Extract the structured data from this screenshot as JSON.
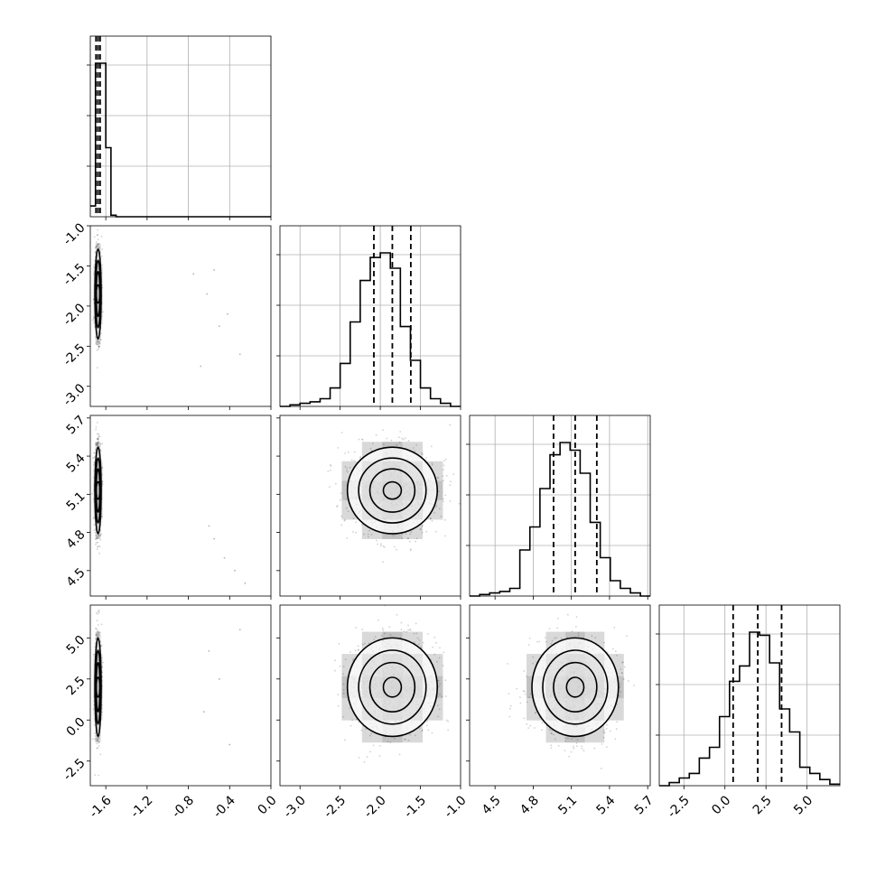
{
  "chart_data": {
    "type": "corner",
    "description_of_params": "4 parameters, no axis labels printed",
    "grid": true,
    "hist_type": "step",
    "quantile_lines": "dashed",
    "params": [
      {
        "min": -1.75,
        "max": 0.0,
        "ticks": [
          "-1.6",
          "-1.2",
          "-0.8",
          "-0.4",
          "0.0"
        ],
        "tick_values": [
          -1.6,
          -1.2,
          -0.8,
          -0.4,
          0.0
        ],
        "quantiles": [
          -1.695,
          -1.675,
          -1.655
        ]
      },
      {
        "min": -3.25,
        "max": -1.0,
        "ticks": [
          "-1.0",
          "-1.5",
          "-2.0",
          "-2.5",
          "-3.0"
        ],
        "tick_values": [
          -1.0,
          -1.5,
          -2.0,
          -2.5,
          -3.0
        ],
        "x_ticks": [
          "-3.0",
          "-2.5",
          "-2.0",
          "-1.5",
          "-1.0"
        ],
        "x_tick_values": [
          -3.0,
          -2.5,
          -2.0,
          -1.5,
          -1.0
        ],
        "quantiles": [
          -2.08,
          -1.85,
          -1.62
        ]
      },
      {
        "min": 4.3,
        "max": 5.72,
        "ticks": [
          "5.7",
          "5.4",
          "5.1",
          "4.8",
          "4.5"
        ],
        "tick_values": [
          5.7,
          5.4,
          5.1,
          4.8,
          4.5
        ],
        "x_ticks": [
          "4.5",
          "4.8",
          "5.1",
          "5.4",
          "5.7"
        ],
        "x_tick_values": [
          4.5,
          4.8,
          5.1,
          5.4,
          5.7
        ],
        "quantiles": [
          4.96,
          5.13,
          5.3
        ]
      },
      {
        "min": -4.0,
        "max": 7.0,
        "ticks": [
          "5.0",
          "2.5",
          "0.0",
          "-2.5"
        ],
        "tick_values": [
          5.0,
          2.5,
          0.0,
          -2.5
        ],
        "x_ticks": [
          "-2.5",
          "0.0",
          "2.5",
          "5.0"
        ],
        "x_tick_values": [
          -2.5,
          0.0,
          2.5,
          5.0
        ],
        "quantiles": [
          0.5,
          2.0,
          3.45
        ]
      }
    ],
    "histograms": [
      {
        "param": 0,
        "bin_edges": [
          -1.75,
          -1.7,
          -1.65,
          -1.6,
          -1.55,
          -1.5,
          0.0
        ],
        "counts": [
          0.07,
          1.0,
          1.0,
          0.45,
          0.01,
          0.0
        ]
      },
      {
        "param": 1,
        "bin_edges": [
          -3.25,
          -3.125,
          -3.0,
          -2.875,
          -2.75,
          -2.625,
          -2.5,
          -2.375,
          -2.25,
          -2.125,
          -2.0,
          -1.875,
          -1.75,
          -1.625,
          -1.5,
          -1.375,
          -1.25,
          -1.125,
          -1.0
        ],
        "counts": [
          0.0,
          0.01,
          0.02,
          0.03,
          0.05,
          0.12,
          0.28,
          0.55,
          0.82,
          0.97,
          1.0,
          0.9,
          0.52,
          0.3,
          0.12,
          0.05,
          0.02,
          0.0
        ]
      },
      {
        "param": 2,
        "bin_edges": [
          4.3,
          4.379,
          4.458,
          4.537,
          4.616,
          4.695,
          4.774,
          4.853,
          4.932,
          5.011,
          5.09,
          5.169,
          5.248,
          5.327,
          5.406,
          5.485,
          5.564,
          5.643,
          5.72
        ],
        "counts": [
          0.0,
          0.01,
          0.02,
          0.03,
          0.05,
          0.3,
          0.45,
          0.7,
          0.92,
          1.0,
          0.95,
          0.8,
          0.48,
          0.25,
          0.1,
          0.05,
          0.02,
          0.0
        ]
      },
      {
        "param": 3,
        "bin_edges": [
          -4.0,
          -3.39,
          -2.78,
          -2.17,
          -1.56,
          -0.94,
          -0.33,
          0.28,
          0.89,
          1.5,
          2.11,
          2.72,
          3.33,
          3.94,
          4.56,
          5.17,
          5.78,
          6.39,
          7.0
        ],
        "counts": [
          0.0,
          0.02,
          0.05,
          0.08,
          0.18,
          0.25,
          0.45,
          0.68,
          0.78,
          1.0,
          0.98,
          0.8,
          0.5,
          0.35,
          0.12,
          0.08,
          0.04,
          0.01
        ]
      }
    ],
    "scatter_2d": [
      {
        "x_param": 0,
        "y_param": 1,
        "center": [
          -1.675,
          -1.85
        ],
        "spread": [
          0.015,
          0.28
        ],
        "outliers": [
          [
            -0.75,
            -1.6
          ],
          [
            -0.62,
            -1.85
          ],
          [
            -0.5,
            -2.25
          ],
          [
            -0.3,
            -2.6
          ],
          [
            -0.55,
            -1.55
          ],
          [
            -0.42,
            -2.1
          ],
          [
            -0.68,
            -2.75
          ]
        ]
      },
      {
        "x_param": 0,
        "y_param": 2,
        "center": [
          -1.675,
          5.13
        ],
        "spread": [
          0.015,
          0.17
        ],
        "outliers": [
          [
            -0.6,
            4.85
          ],
          [
            -0.45,
            4.6
          ],
          [
            -0.35,
            4.5
          ],
          [
            -0.55,
            4.75
          ],
          [
            -0.25,
            4.4
          ]
        ]
      },
      {
        "x_param": 0,
        "y_param": 3,
        "center": [
          -1.675,
          2.0
        ],
        "spread": [
          0.015,
          1.5
        ],
        "outliers": [
          [
            -0.5,
            2.5
          ],
          [
            -0.3,
            5.5
          ],
          [
            -0.65,
            0.5
          ],
          [
            -0.4,
            -1.5
          ],
          [
            -0.6,
            4.2
          ]
        ]
      },
      {
        "x_param": 1,
        "y_param": 2,
        "center": [
          -1.85,
          5.13
        ],
        "spread": [
          0.28,
          0.17
        ],
        "outliers": []
      },
      {
        "x_param": 1,
        "y_param": 3,
        "center": [
          -1.85,
          2.0
        ],
        "spread": [
          0.28,
          1.5
        ],
        "outliers": []
      },
      {
        "x_param": 2,
        "y_param": 3,
        "center": [
          5.13,
          2.0
        ],
        "spread": [
          0.17,
          1.5
        ],
        "outliers": []
      }
    ]
  }
}
